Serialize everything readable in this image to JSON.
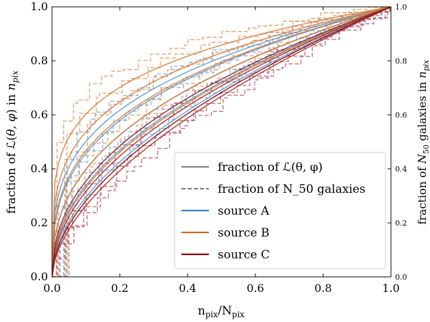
{
  "chart_data": {
    "type": "line",
    "title": "",
    "xlabel": "n_pix / N_pix",
    "ylabel_left": "fraction of ℒ(θ, φ) in n_pix",
    "ylabel_right": "fraction of N_50 galaxies in n_pix",
    "xlim": [
      0.0,
      1.0
    ],
    "ylim": [
      0.0,
      1.0
    ],
    "x_ticks": [
      "0.0",
      "0.2",
      "0.4",
      "0.6",
      "0.8",
      "1.0"
    ],
    "y_ticks_left": [
      "0.0",
      "0.2",
      "0.4",
      "0.6",
      "0.8",
      "1.0"
    ],
    "y_ticks_right": [
      "0.0",
      "0.2",
      "0.4",
      "0.6",
      "0.8",
      "1.0"
    ],
    "grid": false,
    "legend_position": "lower-right",
    "legend": [
      {
        "label": "fraction of ℒ(θ, φ)",
        "style": "solid",
        "color": "#808080"
      },
      {
        "label": "fraction of N_50 galaxies",
        "style": "dashed",
        "color": "#808080"
      },
      {
        "label": "source A",
        "style": "solid",
        "color": "#3a7fbf"
      },
      {
        "label": "source B",
        "style": "solid",
        "color": "#d2691e"
      },
      {
        "label": "source C",
        "style": "solid",
        "color": "#8b0000"
      }
    ],
    "series": [
      {
        "source": "source A",
        "kind": "likelihood",
        "color": "#5a96cc",
        "exponent": 0.3
      },
      {
        "source": "source A",
        "kind": "likelihood",
        "color": "#5a96cc",
        "exponent": 0.34
      },
      {
        "source": "source A",
        "kind": "likelihood",
        "color": "#5a96cc",
        "exponent": 0.4
      },
      {
        "source": "source A",
        "kind": "likelihood",
        "color": "#5a96cc",
        "exponent": 0.47
      },
      {
        "source": "source A",
        "kind": "likelihood",
        "color": "#5a96cc",
        "exponent": 0.53
      },
      {
        "source": "source A",
        "kind": "galaxies",
        "color": "#6fa3d3",
        "exponent": 0.25
      },
      {
        "source": "source A",
        "kind": "galaxies",
        "color": "#6fa3d3",
        "exponent": 0.33
      },
      {
        "source": "source A",
        "kind": "galaxies",
        "color": "#6fa3d3",
        "exponent": 0.42
      },
      {
        "source": "source A",
        "kind": "galaxies",
        "color": "#6fa3d3",
        "exponent": 0.5
      },
      {
        "source": "source B",
        "kind": "likelihood",
        "color": "#d77b3a",
        "exponent": 0.22
      },
      {
        "source": "source B",
        "kind": "likelihood",
        "color": "#d77b3a",
        "exponent": 0.27
      },
      {
        "source": "source B",
        "kind": "likelihood",
        "color": "#d77b3a",
        "exponent": 0.33
      },
      {
        "source": "source B",
        "kind": "likelihood",
        "color": "#d77b3a",
        "exponent": 0.4
      },
      {
        "source": "source B",
        "kind": "likelihood",
        "color": "#d77b3a",
        "exponent": 0.48
      },
      {
        "source": "source B",
        "kind": "galaxies",
        "color": "#e08a4f",
        "exponent": 0.16
      },
      {
        "source": "source B",
        "kind": "galaxies",
        "color": "#e08a4f",
        "exponent": 0.2
      },
      {
        "source": "source B",
        "kind": "galaxies",
        "color": "#e08a4f",
        "exponent": 0.26
      },
      {
        "source": "source B",
        "kind": "galaxies",
        "color": "#e08a4f",
        "exponent": 0.33
      },
      {
        "source": "source B",
        "kind": "galaxies",
        "color": "#e08a4f",
        "exponent": 0.42
      },
      {
        "source": "source C",
        "kind": "likelihood",
        "color": "#b22222",
        "exponent": 0.5
      },
      {
        "source": "source C",
        "kind": "likelihood",
        "color": "#8b0000",
        "exponent": 0.55
      },
      {
        "source": "source C",
        "kind": "likelihood",
        "color": "#a52a2a",
        "exponent": 0.58
      },
      {
        "source": "source C",
        "kind": "likelihood",
        "color": "#7a1f2b",
        "exponent": 0.45
      },
      {
        "source": "source C",
        "kind": "galaxies",
        "color": "#b04a5a",
        "exponent": 0.45
      },
      {
        "source": "source C",
        "kind": "galaxies",
        "color": "#b04a5a",
        "exponent": 0.55
      },
      {
        "source": "source C",
        "kind": "galaxies",
        "color": "#b04a5a",
        "exponent": 0.62
      }
    ]
  }
}
